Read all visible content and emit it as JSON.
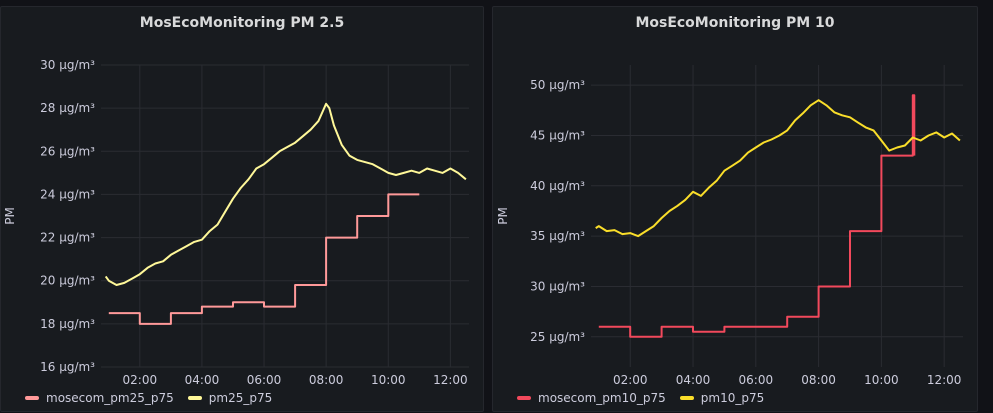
{
  "chart_data": [
    {
      "type": "line",
      "title": "MosEcoMonitoring PM 2.5",
      "ylabel": "PM",
      "unit": "µg/m³",
      "ylim": [
        16,
        30
      ],
      "yticks": [
        16,
        18,
        20,
        22,
        24,
        26,
        28,
        30
      ],
      "ytick_labels": [
        "16 µg/m³",
        "18 µg/m³",
        "20 µg/m³",
        "22 µg/m³",
        "24 µg/m³",
        "26 µg/m³",
        "28 µg/m³",
        "30 µg/m³"
      ],
      "xlim": [
        0.75,
        12.6
      ],
      "xticks": [
        2,
        4,
        6,
        8,
        10,
        12
      ],
      "xtick_labels": [
        "02:00",
        "04:00",
        "06:00",
        "08:00",
        "10:00",
        "12:00"
      ],
      "grid": true,
      "legend_position": "bottom-left",
      "series": [
        {
          "name": "mosecom_pm25_p75",
          "color": "#ff9999",
          "step": true,
          "x": [
            1,
            2,
            3,
            4,
            5,
            6,
            7,
            8,
            9,
            10,
            11
          ],
          "values": [
            18.5,
            18.0,
            18.5,
            18.8,
            19.0,
            18.8,
            19.8,
            22.0,
            23.0,
            24.0,
            24.0
          ]
        },
        {
          "name": "pm25_p75",
          "color": "#fff899",
          "step": false,
          "x": [
            0.9,
            1.0,
            1.25,
            1.5,
            1.75,
            2.0,
            2.25,
            2.5,
            2.75,
            3.0,
            3.25,
            3.5,
            3.75,
            4.0,
            4.25,
            4.5,
            4.75,
            5.0,
            5.25,
            5.5,
            5.75,
            6.0,
            6.25,
            6.5,
            6.75,
            7.0,
            7.25,
            7.5,
            7.75,
            8.0,
            8.1,
            8.25,
            8.5,
            8.75,
            9.0,
            9.25,
            9.5,
            9.75,
            10.0,
            10.25,
            10.5,
            10.75,
            11.0,
            11.25,
            11.5,
            11.75,
            12.0,
            12.25,
            12.5
          ],
          "values": [
            20.2,
            20.0,
            19.8,
            19.9,
            20.1,
            20.3,
            20.6,
            20.8,
            20.9,
            21.2,
            21.4,
            21.6,
            21.8,
            21.9,
            22.3,
            22.6,
            23.2,
            23.8,
            24.3,
            24.7,
            25.2,
            25.4,
            25.7,
            26.0,
            26.2,
            26.4,
            26.7,
            27.0,
            27.4,
            28.2,
            28.0,
            27.2,
            26.3,
            25.8,
            25.6,
            25.5,
            25.4,
            25.2,
            25.0,
            24.9,
            25.0,
            25.1,
            25.0,
            25.2,
            25.1,
            25.0,
            25.2,
            25.0,
            24.7
          ]
        }
      ]
    },
    {
      "type": "line",
      "title": "MosEcoMonitoring PM 10",
      "ylabel": "PM",
      "unit": "µg/m³",
      "ylim": [
        22,
        52
      ],
      "yticks": [
        25,
        30,
        35,
        40,
        45,
        50
      ],
      "ytick_labels": [
        "25 µg/m³",
        "30 µg/m³",
        "35 µg/m³",
        "40 µg/m³",
        "45 µg/m³",
        "50 µg/m³"
      ],
      "xlim": [
        0.75,
        12.6
      ],
      "xticks": [
        2,
        4,
        6,
        8,
        10,
        12
      ],
      "xtick_labels": [
        "02:00",
        "04:00",
        "06:00",
        "08:00",
        "10:00",
        "12:00"
      ],
      "grid": true,
      "legend_position": "bottom-left",
      "series": [
        {
          "name": "mosecom_pm10_p75",
          "color": "#f2495c",
          "step": true,
          "x": [
            1,
            2,
            3,
            4,
            5,
            6,
            7,
            8,
            9,
            10,
            11,
            11.05
          ],
          "values": [
            26.0,
            25.0,
            26.0,
            25.5,
            26.0,
            26.0,
            27.0,
            30.0,
            35.5,
            43.0,
            49.0,
            43.0
          ]
        },
        {
          "name": "pm10_p75",
          "color": "#fade2a",
          "step": false,
          "x": [
            0.9,
            1.0,
            1.25,
            1.5,
            1.75,
            2.0,
            2.25,
            2.5,
            2.75,
            3.0,
            3.25,
            3.5,
            3.75,
            4.0,
            4.25,
            4.5,
            4.75,
            5.0,
            5.25,
            5.5,
            5.75,
            6.0,
            6.25,
            6.5,
            6.75,
            7.0,
            7.25,
            7.5,
            7.75,
            8.0,
            8.25,
            8.5,
            8.75,
            9.0,
            9.25,
            9.5,
            9.75,
            10.0,
            10.25,
            10.5,
            10.75,
            11.0,
            11.25,
            11.5,
            11.75,
            12.0,
            12.25,
            12.5
          ],
          "values": [
            35.8,
            36.0,
            35.5,
            35.6,
            35.2,
            35.3,
            35.0,
            35.5,
            36.0,
            36.8,
            37.5,
            38.0,
            38.6,
            39.4,
            39.0,
            39.8,
            40.5,
            41.5,
            42.0,
            42.5,
            43.3,
            43.8,
            44.3,
            44.6,
            45.0,
            45.5,
            46.5,
            47.2,
            48.0,
            48.5,
            48.0,
            47.3,
            47.0,
            46.8,
            46.3,
            45.8,
            45.5,
            44.5,
            43.5,
            43.8,
            44.0,
            44.8,
            44.5,
            45.0,
            45.3,
            44.8,
            45.2,
            44.5
          ]
        }
      ]
    }
  ]
}
